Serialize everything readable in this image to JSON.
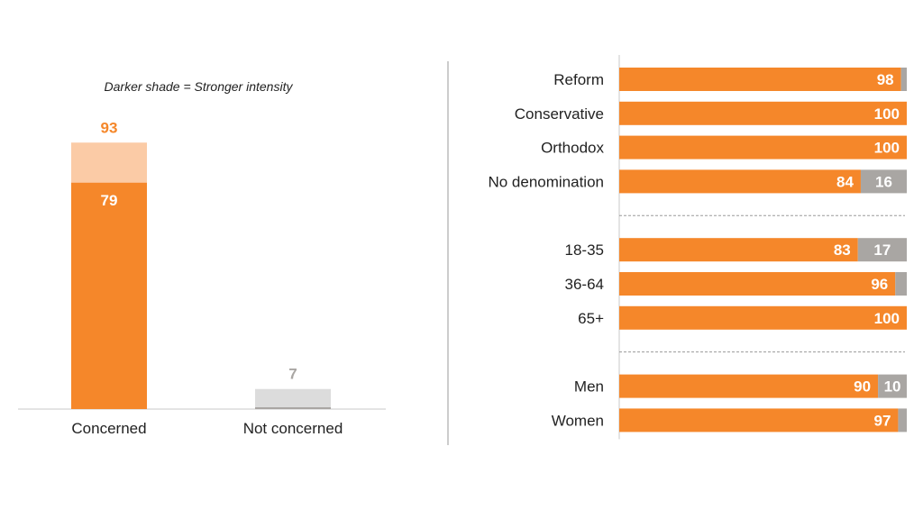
{
  "chart_data": [
    {
      "type": "bar",
      "subtype": "stacked-intensity",
      "annotation": "Darker shade = Stronger intensity",
      "categories": [
        "Concerned",
        "Not concerned"
      ],
      "totals": [
        93,
        7
      ],
      "stronger_intensity": [
        79,
        0
      ],
      "total_labels": [
        "93",
        "7"
      ],
      "stronger_labels": [
        "79",
        ""
      ],
      "colors": {
        "concerned_strong": "#f5872a",
        "concerned_light": "#fbcba6",
        "not_concerned_light": "#dcdcdc",
        "not_concerned_strong": "#a9a6a3",
        "concerned_label": "#f5872a",
        "not_concerned_label": "#a9a6a3"
      },
      "ylim": [
        0,
        100
      ]
    },
    {
      "type": "bar",
      "orientation": "horizontal",
      "stacked": true,
      "groups": [
        [
          "Reform",
          "Conservative",
          "Orthodox",
          "No denomination"
        ],
        [
          "18-35",
          "36-64",
          "65+"
        ],
        [
          "Men",
          "Women"
        ]
      ],
      "categories": [
        "Reform",
        "Conservative",
        "Orthodox",
        "No denomination",
        "18-35",
        "36-64",
        "65+",
        "Men",
        "Women"
      ],
      "series": [
        {
          "values": [
            98,
            100,
            100,
            84,
            83,
            96,
            100,
            90,
            97
          ],
          "labels": [
            "98",
            "100",
            "100",
            "84",
            "83",
            "96",
            "100",
            "90",
            "97"
          ],
          "color": "#f5872a"
        },
        {
          "values": [
            2,
            0,
            0,
            16,
            17,
            4,
            0,
            10,
            3
          ],
          "labels": [
            "",
            "",
            "",
            "16",
            "17",
            "",
            "",
            "10",
            ""
          ],
          "color": "#a9a6a3"
        }
      ],
      "xlim": [
        0,
        100
      ]
    }
  ]
}
